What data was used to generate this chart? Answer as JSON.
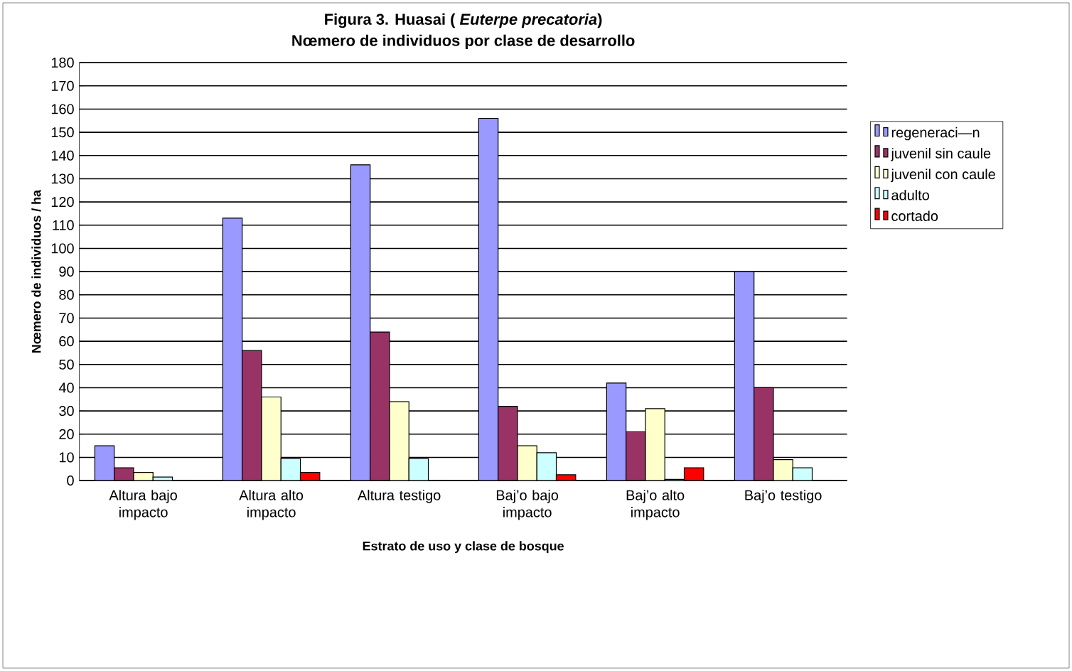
{
  "chart_data": {
    "type": "bar",
    "title": "Figura 3. Huasai ( *Euterpe precatoria*)",
    "subtitle": "Nœmero de individuos por clase de desarrollo",
    "xlabel": "Estrato de uso y clase de bosque",
    "ylabel": "Nœmero de individuos / ha",
    "categories": [
      "Altura bajo impacto",
      "Altura alto impacto",
      "Altura testigo",
      "Baj’o bajo impacto",
      "Baj’o alto impacto",
      "Baj’o testigo"
    ],
    "series": [
      {
        "name": "regeneraci—n",
        "color": "#9999ff",
        "values": [
          15,
          113,
          136,
          156,
          42,
          90
        ]
      },
      {
        "name": "juvenil sin caule",
        "color": "#993366",
        "values": [
          5.5,
          56,
          64,
          32,
          21,
          40
        ]
      },
      {
        "name": "juvenil con caule",
        "color": "#ffffcc",
        "values": [
          3.5,
          36,
          34,
          15,
          31,
          9
        ]
      },
      {
        "name": "adulto",
        "color": "#ccffff",
        "values": [
          1.5,
          9.5,
          9.5,
          12,
          0.5,
          5.5
        ]
      },
      {
        "name": "cortado",
        "color": "#ff0000",
        "values": [
          0,
          3.5,
          0,
          2.5,
          5.5,
          0
        ]
      }
    ],
    "ylim": [
      0,
      180
    ],
    "yticks": [
      0,
      10,
      20,
      30,
      40,
      50,
      60,
      70,
      80,
      90,
      100,
      110,
      120,
      130,
      140,
      150,
      160,
      170,
      180
    ],
    "grid": "y",
    "legend": "right"
  }
}
